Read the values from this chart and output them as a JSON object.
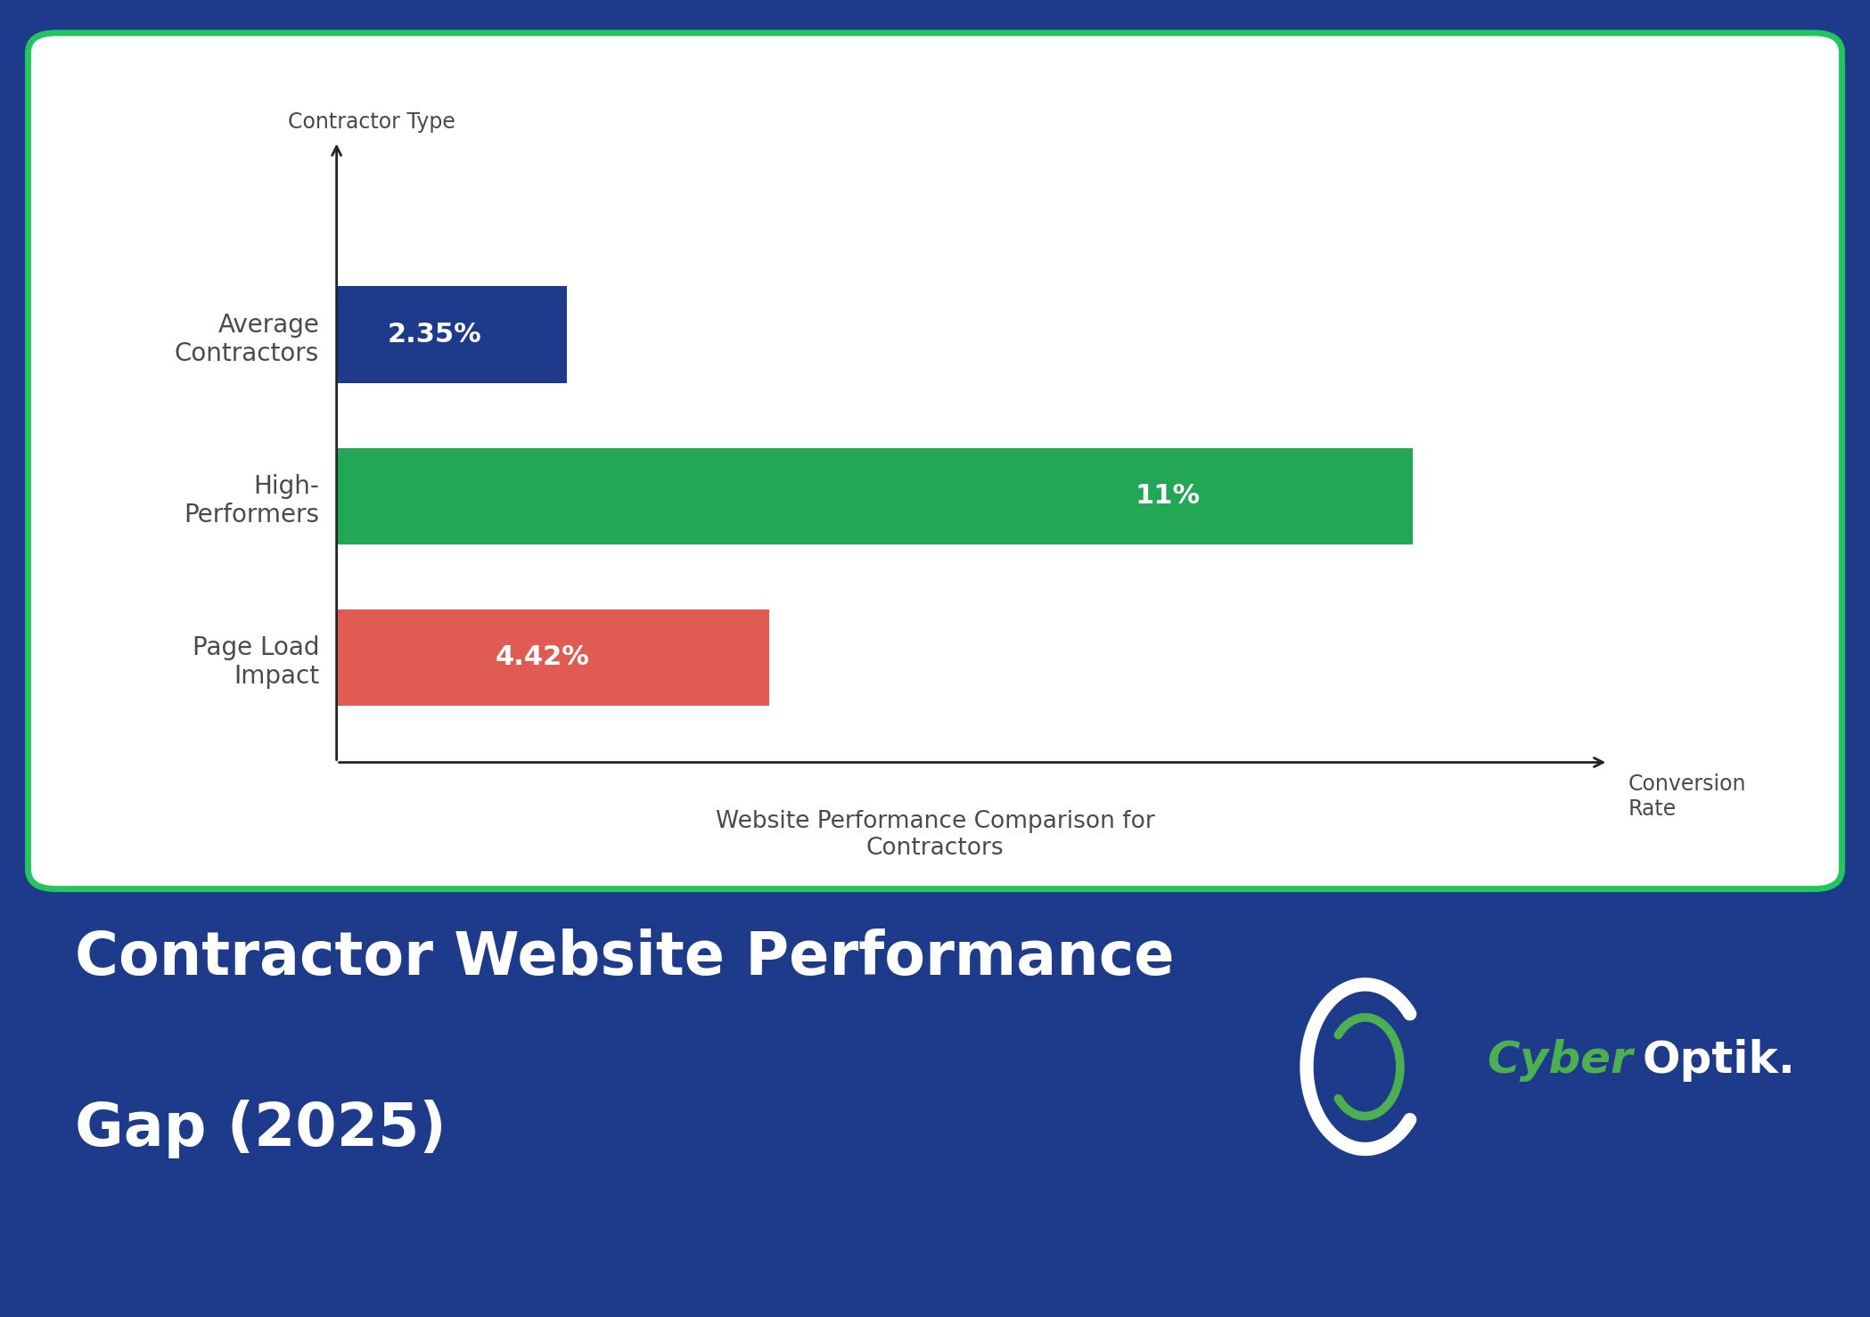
{
  "background_color": "#1e3a8a",
  "card_background": "#ffffff",
  "card_border_color": "#22c55e",
  "categories": [
    "Average\nContractors",
    "High-\nPerformers",
    "Page Load\nImpact"
  ],
  "values": [
    2.35,
    11.0,
    4.42
  ],
  "bar_colors": [
    "#1e3a8a",
    "#22a855",
    "#e05c52"
  ],
  "bar_labels": [
    "2.35%",
    "11%",
    "4.42%"
  ],
  "ylabel": "Contractor Type",
  "xlabel": "Conversion\nRate",
  "chart_title": "Website Performance Comparison for\nContractors",
  "main_title_line1": "Contractor Website Performance",
  "main_title_line2": "Gap (2025)",
  "title_color": "#ffffff",
  "label_color": "#4a4a4a",
  "bar_text_color": "#ffffff",
  "xlim": [
    0,
    13
  ],
  "logo_text_cyber": "Cyber",
  "logo_text_optik": "Optik.",
  "logo_green_color": "#4caf50",
  "logo_white_color": "#ffffff"
}
